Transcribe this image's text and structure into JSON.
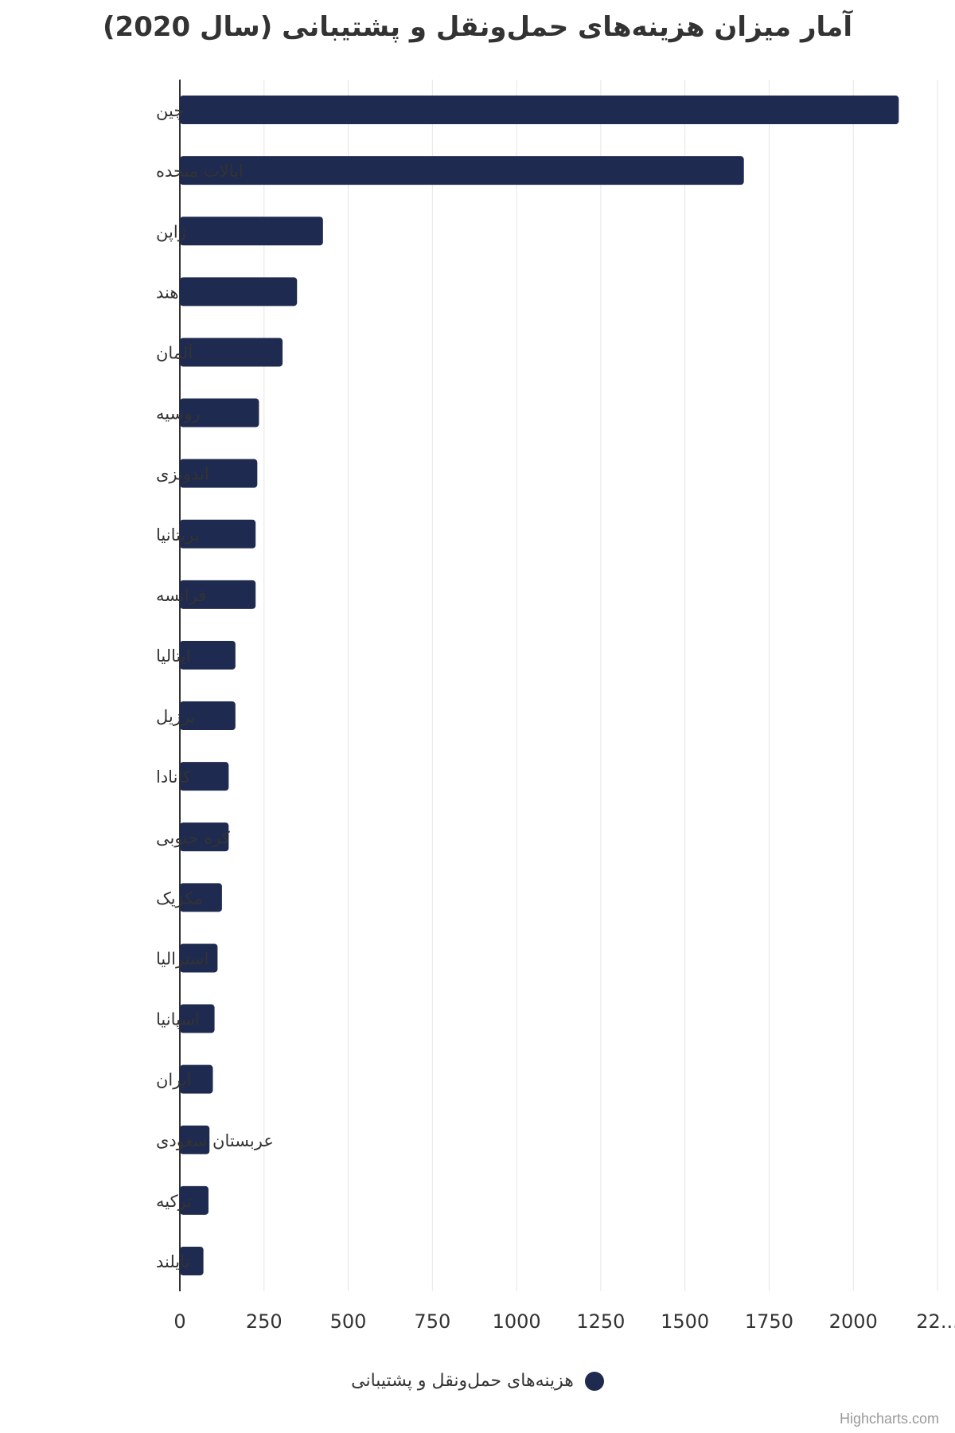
{
  "chart_data": {
    "type": "bar",
    "orientation": "horizontal",
    "title": "آمار میزان هزینه‌های حمل‌ونقل و پشتیبانی (سال 2020)",
    "categories": [
      "چین",
      "ایالات متحده",
      "ژاپن",
      "هند",
      "آلمان",
      "روسیه",
      "اندونزی",
      "بریتانیا",
      "فرانسه",
      "ایتالیا",
      "برزیل",
      "کانادا",
      "کره جنوبی",
      "مکزیک",
      "استرالیا",
      "اسپانیا",
      "ایران",
      "عربستان سعودی",
      "ترکیه",
      "تایلند"
    ],
    "series": [
      {
        "name": "هزینه‌های حمل‌ونقل و پشتیبانی",
        "values": [
          2135,
          1675,
          425,
          348,
          305,
          235,
          230,
          225,
          225,
          165,
          165,
          145,
          145,
          125,
          112,
          103,
          98,
          88,
          85,
          70
        ]
      }
    ],
    "xlim": [
      0,
      2250
    ],
    "xticks": [
      "0",
      "250",
      "500",
      "750",
      "1000",
      "1250",
      "1500",
      "1750",
      "2000",
      "22..."
    ],
    "grid": true,
    "legend": "bottom-center",
    "colors": {
      "bar": "#1e2a4f",
      "grid": "#e6e6e6",
      "axis": "#333333",
      "text": "#333333"
    },
    "credits": "Highcharts.com"
  }
}
